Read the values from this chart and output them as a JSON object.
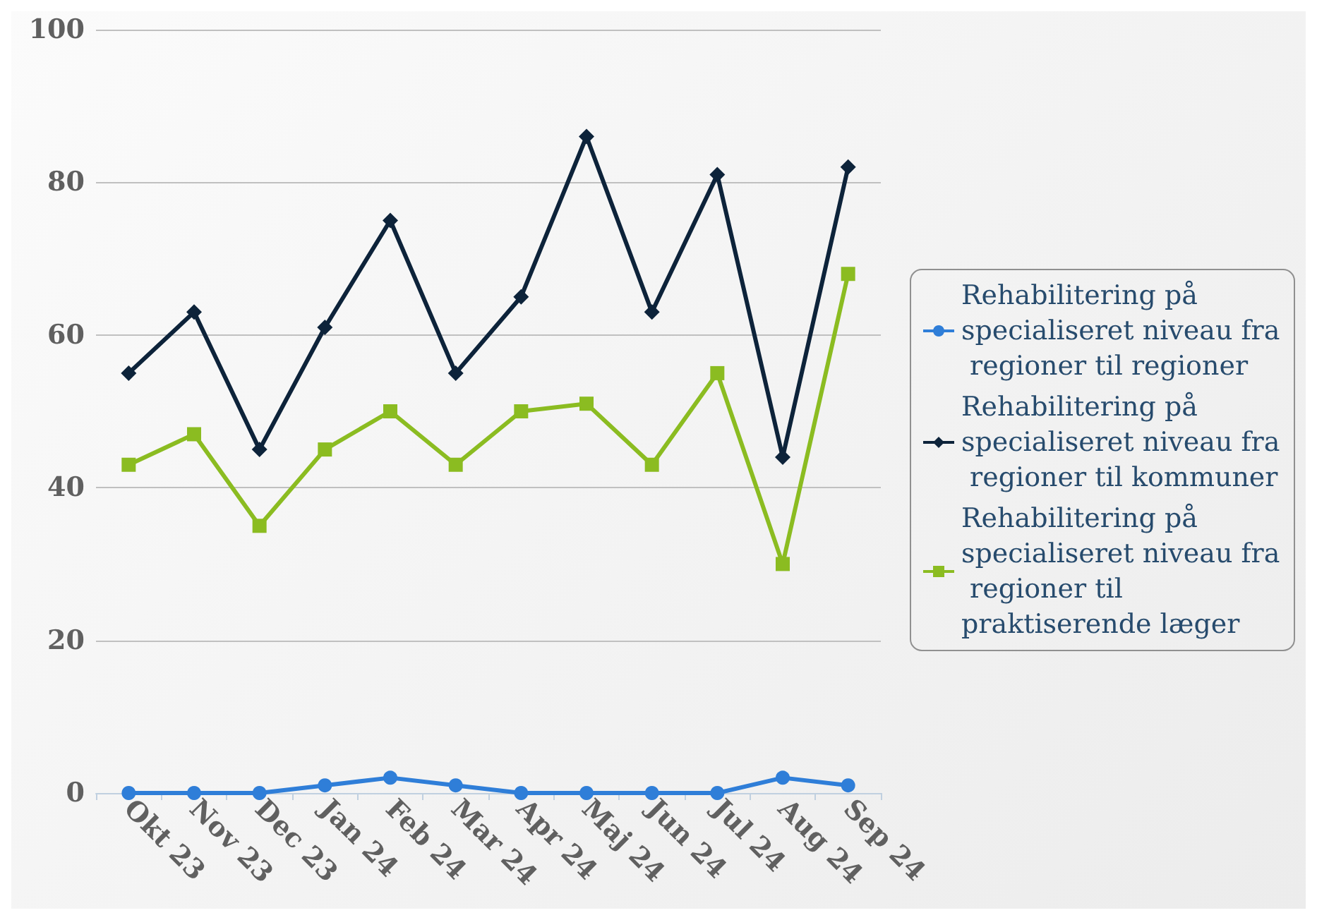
{
  "chart_data": {
    "type": "line",
    "categories": [
      "Okt 23",
      "Nov 23",
      "Dec 23",
      "Jan 24",
      "Feb 24",
      "Mar 24",
      "Apr 24",
      "Maj 24",
      "Jun 24",
      "Jul 24",
      "Aug 24",
      "Sep 24"
    ],
    "series": [
      {
        "name": "Rehabilitering på specialiseret niveau fra regioner til regioner",
        "color": "#2f7ed8",
        "marker": "circle",
        "values": [
          0,
          0,
          0,
          1,
          2,
          1,
          0,
          0,
          0,
          0,
          2,
          1
        ]
      },
      {
        "name": "Rehabilitering på specialiseret niveau fra regioner til kommuner",
        "color": "#0d233a",
        "marker": "diamond",
        "values": [
          55,
          63,
          45,
          61,
          75,
          55,
          65,
          86,
          63,
          81,
          44,
          82
        ]
      },
      {
        "name": "Rehabilitering på specialiseret niveau fra regioner til praktiserende læger",
        "color": "#8bbc21",
        "marker": "square",
        "values": [
          43,
          47,
          35,
          45,
          50,
          43,
          50,
          51,
          43,
          55,
          30,
          68
        ]
      }
    ],
    "ylim": [
      0,
      100
    ],
    "yticks": [
      0,
      20,
      40,
      60,
      80,
      100
    ],
    "grid": "y",
    "legend": "right"
  }
}
